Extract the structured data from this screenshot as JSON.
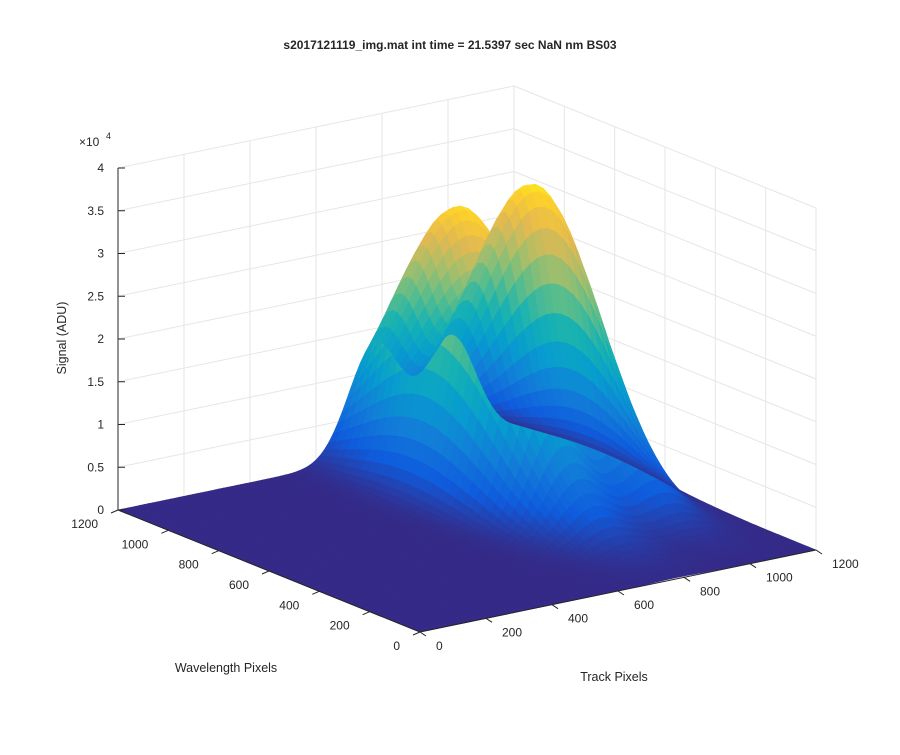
{
  "chart_data": {
    "type": "surface",
    "title": "s2017121119_img.mat int time = 21.5397 sec  NaN nm BS03",
    "xlabel": "Track Pixels",
    "ylabel": "Wavelength Pixels",
    "zlabel": "Signal (ADU)",
    "xlim": [
      0,
      1200
    ],
    "ylim": [
      0,
      1200
    ],
    "zlim": [
      0,
      40000
    ],
    "z_exponent_label": "×10",
    "z_exponent_power": "4",
    "x_ticks": [
      "0",
      "200",
      "400",
      "600",
      "800",
      "1000",
      "1200"
    ],
    "y_ticks": [
      "0",
      "200",
      "400",
      "600",
      "800",
      "1000",
      "1200"
    ],
    "z_ticks": [
      "0",
      "0.5",
      "1",
      "1.5",
      "2",
      "2.5",
      "3",
      "3.5",
      "4"
    ],
    "grid": true,
    "colormap": "parula",
    "colors": {
      "low": "#352a87",
      "high": "#f9fb0e"
    },
    "baseline_signal": 0,
    "peaks": [
      {
        "track_center": 780,
        "track_width": 80,
        "wavelength_center": 850,
        "wavelength_width": 260,
        "peak_signal": 33000
      },
      {
        "track_center": 1010,
        "track_width": 75,
        "wavelength_center": 860,
        "wavelength_width": 240,
        "peak_signal": 33500
      }
    ]
  }
}
